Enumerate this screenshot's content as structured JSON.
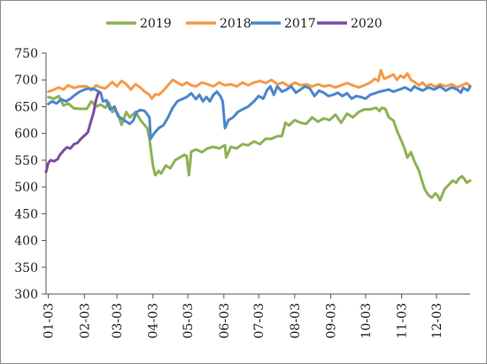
{
  "chart_data": {
    "type": "line",
    "title": "",
    "xlabel": "",
    "ylabel": "",
    "ylim": [
      300,
      750
    ],
    "yticks": [
      300,
      350,
      400,
      450,
      500,
      550,
      600,
      650,
      700,
      750
    ],
    "xlim": [
      1,
      366
    ],
    "xticks": [
      {
        "label": "01-03",
        "day": 3
      },
      {
        "label": "02-03",
        "day": 34
      },
      {
        "label": "03-03",
        "day": 62
      },
      {
        "label": "04-03",
        "day": 93
      },
      {
        "label": "05-03",
        "day": 123
      },
      {
        "label": "06-03",
        "day": 154
      },
      {
        "label": "07-03",
        "day": 184
      },
      {
        "label": "08-03",
        "day": 215
      },
      {
        "label": "09-03",
        "day": 246
      },
      {
        "label": "10-03",
        "day": 276
      },
      {
        "label": "11-03",
        "day": 307
      },
      {
        "label": "12-03",
        "day": 337
      }
    ],
    "grid": false,
    "legend_position": "top-center",
    "series": [
      {
        "name": "2019",
        "color": "#8db255",
        "points": [
          [
            3,
            668
          ],
          [
            8,
            665
          ],
          [
            12,
            670
          ],
          [
            16,
            652
          ],
          [
            20,
            656
          ],
          [
            25,
            647
          ],
          [
            30,
            646
          ],
          [
            36,
            646
          ],
          [
            40,
            660
          ],
          [
            44,
            650
          ],
          [
            48,
            654
          ],
          [
            52,
            648
          ],
          [
            55,
            658
          ],
          [
            58,
            640
          ],
          [
            60,
            644
          ],
          [
            63,
            636
          ],
          [
            66,
            616
          ],
          [
            70,
            640
          ],
          [
            73,
            630
          ],
          [
            78,
            640
          ],
          [
            83,
            623
          ],
          [
            88,
            610
          ],
          [
            90,
            590
          ],
          [
            93,
            540
          ],
          [
            95,
            522
          ],
          [
            98,
            530
          ],
          [
            100,
            525
          ],
          [
            104,
            540
          ],
          [
            108,
            535
          ],
          [
            112,
            550
          ],
          [
            116,
            555
          ],
          [
            120,
            560
          ],
          [
            122,
            558
          ],
          [
            124,
            522
          ],
          [
            126,
            566
          ],
          [
            130,
            570
          ],
          [
            135,
            565
          ],
          [
            140,
            572
          ],
          [
            145,
            575
          ],
          [
            150,
            572
          ],
          [
            155,
            578
          ],
          [
            156,
            555
          ],
          [
            160,
            575
          ],
          [
            165,
            572
          ],
          [
            170,
            580
          ],
          [
            175,
            578
          ],
          [
            180,
            585
          ],
          [
            185,
            580
          ],
          [
            190,
            590
          ],
          [
            195,
            590
          ],
          [
            200,
            595
          ],
          [
            204,
            595
          ],
          [
            207,
            620
          ],
          [
            210,
            615
          ],
          [
            215,
            625
          ],
          [
            220,
            620
          ],
          [
            225,
            618
          ],
          [
            230,
            630
          ],
          [
            235,
            622
          ],
          [
            240,
            628
          ],
          [
            245,
            625
          ],
          [
            250,
            635
          ],
          [
            255,
            620
          ],
          [
            260,
            637
          ],
          [
            265,
            630
          ],
          [
            270,
            640
          ],
          [
            275,
            645
          ],
          [
            280,
            645
          ],
          [
            285,
            648
          ],
          [
            288,
            642
          ],
          [
            290,
            648
          ],
          [
            293,
            646
          ],
          [
            296,
            630
          ],
          [
            300,
            624
          ],
          [
            303,
            605
          ],
          [
            306,
            590
          ],
          [
            309,
            575
          ],
          [
            312,
            555
          ],
          [
            315,
            565
          ],
          [
            318,
            548
          ],
          [
            322,
            530
          ],
          [
            324,
            515
          ],
          [
            327,
            495
          ],
          [
            330,
            485
          ],
          [
            333,
            480
          ],
          [
            336,
            488
          ],
          [
            338,
            484
          ],
          [
            340,
            475
          ],
          [
            344,
            496
          ],
          [
            348,
            505
          ],
          [
            351,
            512
          ],
          [
            354,
            508
          ],
          [
            356,
            515
          ],
          [
            359,
            520
          ],
          [
            361,
            515
          ],
          [
            363,
            508
          ],
          [
            366,
            512
          ]
        ]
      },
      {
        "name": "2018",
        "color": "#f59a4b",
        "points": [
          [
            3,
            678
          ],
          [
            8,
            682
          ],
          [
            12,
            686
          ],
          [
            16,
            682
          ],
          [
            20,
            690
          ],
          [
            25,
            685
          ],
          [
            30,
            688
          ],
          [
            36,
            688
          ],
          [
            40,
            680
          ],
          [
            44,
            690
          ],
          [
            48,
            686
          ],
          [
            52,
            684
          ],
          [
            55,
            690
          ],
          [
            58,
            696
          ],
          [
            62,
            688
          ],
          [
            66,
            698
          ],
          [
            70,
            692
          ],
          [
            74,
            682
          ],
          [
            78,
            692
          ],
          [
            82,
            686
          ],
          [
            86,
            678
          ],
          [
            90,
            672
          ],
          [
            92,
            665
          ],
          [
            95,
            673
          ],
          [
            98,
            672
          ],
          [
            102,
            680
          ],
          [
            106,
            690
          ],
          [
            110,
            700
          ],
          [
            114,
            695
          ],
          [
            118,
            690
          ],
          [
            122,
            695
          ],
          [
            126,
            690
          ],
          [
            130,
            688
          ],
          [
            135,
            695
          ],
          [
            140,
            692
          ],
          [
            145,
            688
          ],
          [
            150,
            695
          ],
          [
            155,
            690
          ],
          [
            160,
            692
          ],
          [
            165,
            688
          ],
          [
            170,
            695
          ],
          [
            175,
            690
          ],
          [
            180,
            695
          ],
          [
            185,
            698
          ],
          [
            190,
            694
          ],
          [
            195,
            700
          ],
          [
            200,
            692
          ],
          [
            205,
            695
          ],
          [
            210,
            688
          ],
          [
            215,
            695
          ],
          [
            220,
            690
          ],
          [
            225,
            692
          ],
          [
            230,
            688
          ],
          [
            235,
            692
          ],
          [
            240,
            688
          ],
          [
            245,
            690
          ],
          [
            250,
            686
          ],
          [
            255,
            690
          ],
          [
            260,
            694
          ],
          [
            265,
            690
          ],
          [
            270,
            686
          ],
          [
            275,
            690
          ],
          [
            280,
            695
          ],
          [
            284,
            702
          ],
          [
            287,
            698
          ],
          [
            289,
            718
          ],
          [
            292,
            702
          ],
          [
            296,
            706
          ],
          [
            300,
            710
          ],
          [
            303,
            700
          ],
          [
            306,
            708
          ],
          [
            309,
            704
          ],
          [
            312,
            712
          ],
          [
            315,
            700
          ],
          [
            318,
            696
          ],
          [
            322,
            690
          ],
          [
            325,
            695
          ],
          [
            328,
            688
          ],
          [
            332,
            692
          ],
          [
            336,
            687
          ],
          [
            340,
            692
          ],
          [
            345,
            688
          ],
          [
            350,
            692
          ],
          [
            355,
            686
          ],
          [
            359,
            690
          ],
          [
            363,
            694
          ],
          [
            366,
            688
          ]
        ]
      },
      {
        "name": "2017",
        "color": "#4a86cc",
        "points": [
          [
            3,
            655
          ],
          [
            6,
            660
          ],
          [
            10,
            656
          ],
          [
            14,
            664
          ],
          [
            18,
            660
          ],
          [
            22,
            665
          ],
          [
            26,
            672
          ],
          [
            30,
            678
          ],
          [
            34,
            682
          ],
          [
            38,
            684
          ],
          [
            42,
            683
          ],
          [
            45,
            680
          ],
          [
            48,
            676
          ],
          [
            50,
            660
          ],
          [
            53,
            662
          ],
          [
            56,
            645
          ],
          [
            60,
            650
          ],
          [
            63,
            632
          ],
          [
            66,
            628
          ],
          [
            70,
            622
          ],
          [
            73,
            618
          ],
          [
            76,
            624
          ],
          [
            79,
            640
          ],
          [
            82,
            644
          ],
          [
            86,
            642
          ],
          [
            90,
            630
          ],
          [
            91,
            590
          ],
          [
            94,
            600
          ],
          [
            98,
            610
          ],
          [
            102,
            615
          ],
          [
            106,
            630
          ],
          [
            110,
            648
          ],
          [
            114,
            660
          ],
          [
            118,
            664
          ],
          [
            122,
            668
          ],
          [
            126,
            675
          ],
          [
            130,
            664
          ],
          [
            133,
            672
          ],
          [
            136,
            660
          ],
          [
            139,
            668
          ],
          [
            142,
            660
          ],
          [
            145,
            672
          ],
          [
            148,
            678
          ],
          [
            151,
            670
          ],
          [
            153,
            660
          ],
          [
            155,
            610
          ],
          [
            158,
            625
          ],
          [
            162,
            630
          ],
          [
            166,
            640
          ],
          [
            170,
            645
          ],
          [
            175,
            650
          ],
          [
            180,
            660
          ],
          [
            184,
            670
          ],
          [
            188,
            665
          ],
          [
            191,
            680
          ],
          [
            194,
            688
          ],
          [
            197,
            672
          ],
          [
            200,
            688
          ],
          [
            204,
            678
          ],
          [
            208,
            682
          ],
          [
            212,
            688
          ],
          [
            216,
            676
          ],
          [
            220,
            682
          ],
          [
            224,
            688
          ],
          [
            228,
            684
          ],
          [
            232,
            670
          ],
          [
            236,
            680
          ],
          [
            240,
            676
          ],
          [
            244,
            670
          ],
          [
            248,
            672
          ],
          [
            252,
            676
          ],
          [
            256,
            670
          ],
          [
            260,
            675
          ],
          [
            264,
            665
          ],
          [
            268,
            670
          ],
          [
            272,
            668
          ],
          [
            276,
            665
          ],
          [
            280,
            672
          ],
          [
            284,
            675
          ],
          [
            288,
            678
          ],
          [
            292,
            680
          ],
          [
            296,
            682
          ],
          [
            300,
            678
          ],
          [
            305,
            682
          ],
          [
            310,
            686
          ],
          [
            315,
            680
          ],
          [
            318,
            688
          ],
          [
            320,
            685
          ],
          [
            325,
            680
          ],
          [
            330,
            686
          ],
          [
            335,
            682
          ],
          [
            340,
            688
          ],
          [
            345,
            680
          ],
          [
            350,
            686
          ],
          [
            355,
            682
          ],
          [
            358,
            676
          ],
          [
            360,
            685
          ],
          [
            364,
            680
          ],
          [
            366,
            688
          ]
        ]
      },
      {
        "name": "2020",
        "color": "#7a4fa0",
        "points": [
          [
            1,
            528
          ],
          [
            3,
            545
          ],
          [
            5,
            550
          ],
          [
            8,
            548
          ],
          [
            11,
            552
          ],
          [
            13,
            560
          ],
          [
            16,
            568
          ],
          [
            19,
            574
          ],
          [
            22,
            572
          ],
          [
            25,
            580
          ],
          [
            28,
            582
          ],
          [
            31,
            590
          ],
          [
            34,
            596
          ],
          [
            37,
            602
          ],
          [
            38,
            610
          ],
          [
            39,
            618
          ],
          [
            40,
            625
          ],
          [
            42,
            640
          ],
          [
            44,
            662
          ],
          [
            46,
            676
          ]
        ]
      }
    ]
  }
}
